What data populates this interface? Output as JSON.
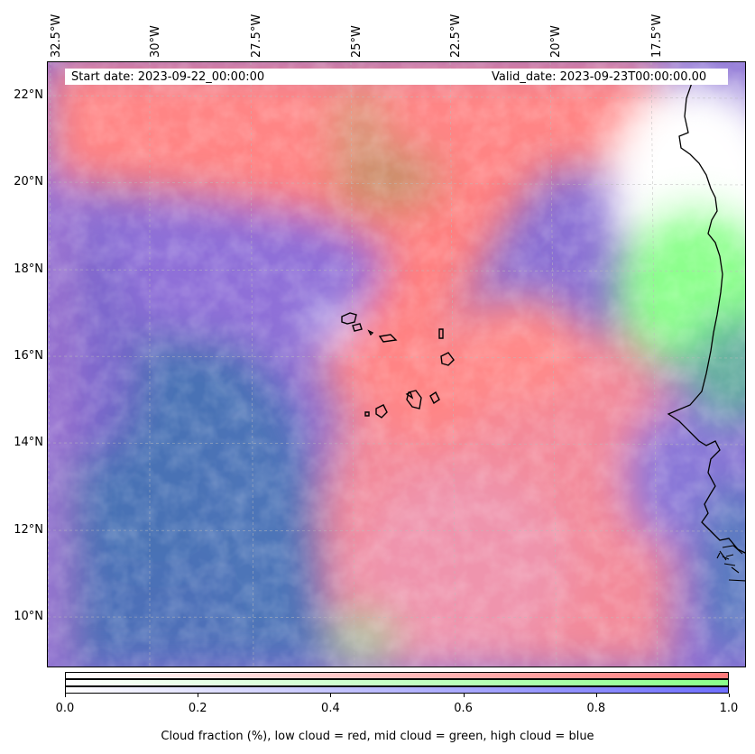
{
  "map": {
    "longitude_labels": [
      "32.5°W",
      "30°W",
      "27.5°W",
      "25°W",
      "22.5°W",
      "20°W",
      "17.5°W"
    ],
    "latitude_labels": [
      "22°N",
      "20°N",
      "18°N",
      "16°N",
      "14°N",
      "12°N",
      "10°N"
    ],
    "gridlines": true,
    "coastline_color": "#000000"
  },
  "info": {
    "start_date": "Start date: 2023-09-22_00:00:00",
    "valid_date": "Valid_date: 2023-09-23T00:00:00.00"
  },
  "colorbar": {
    "series_colors": {
      "low": "#ff7a7a",
      "mid": "#8aff8a",
      "high": "#6f6fff"
    },
    "tick_labels": [
      "0.0",
      "0.2",
      "0.4",
      "0.6",
      "0.8",
      "1.0"
    ],
    "caption": "Cloud fraction (%), low cloud = red, mid cloud = green, high cloud = blue"
  },
  "colors": {
    "low_cloud": "#ff8080",
    "mid_cloud": "#80ff80",
    "high_cloud": "#6060e0",
    "mixed_cloud": "#9b6fd8",
    "ocean_dark": "#4a6fb0"
  }
}
